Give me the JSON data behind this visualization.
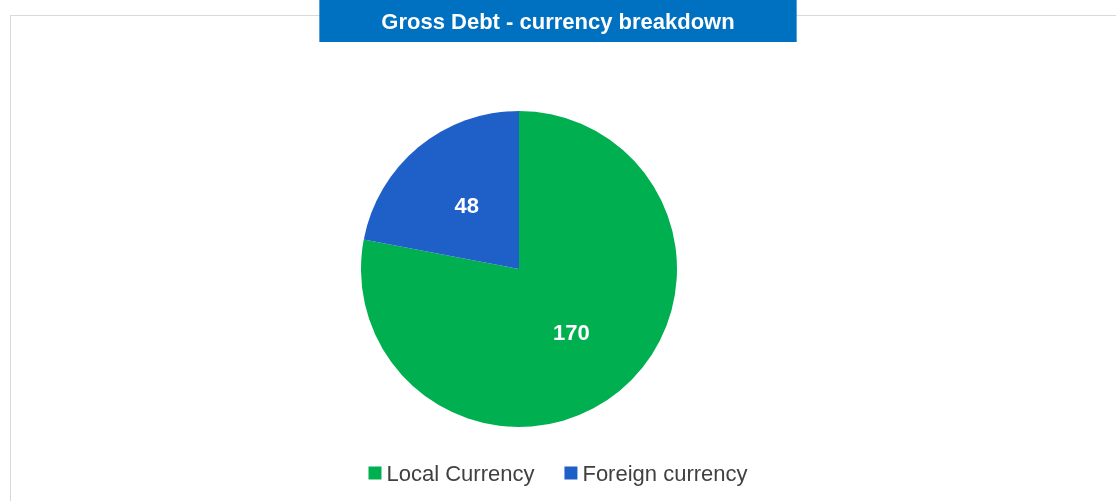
{
  "chart_data": {
    "type": "pie",
    "title": "Gross Debt - currency breakdown",
    "categories": [
      "Local Currency",
      "Foreign currency"
    ],
    "values": [
      170,
      48
    ],
    "colors": [
      "#00b050",
      "#1f5fc8"
    ],
    "data_labels": true,
    "legend": "bottom"
  }
}
